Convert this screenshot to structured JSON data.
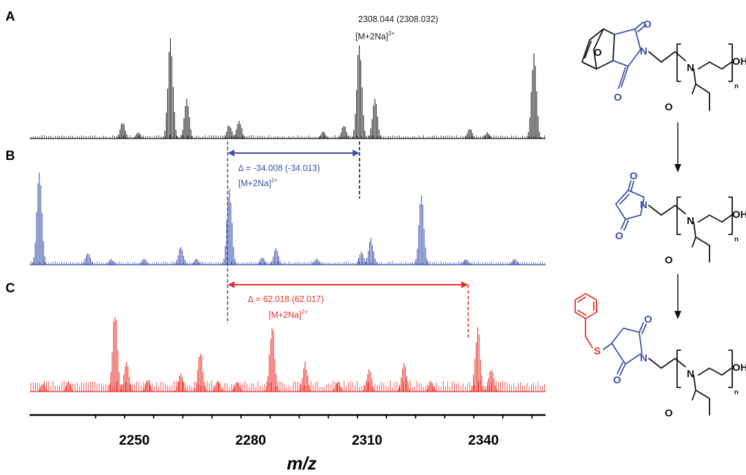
{
  "colors": {
    "A": "#1a1a1a",
    "B": "#3b4fa8",
    "C": "#e8302a",
    "chem_blue": "#3b4fa8",
    "chem_red": "#e8302a"
  },
  "panels": [
    {
      "letter": "A",
      "color": "#1a1a1a"
    },
    {
      "letter": "B",
      "color": "#3b4fa8"
    },
    {
      "letter": "C",
      "color": "#e8302a"
    }
  ],
  "annotations": {
    "A": {
      "value": "2308.044 (2308.032)",
      "ion": "[M+2Na]",
      "charge": "2+"
    },
    "B": {
      "value": "∆ = -34.008 (-34.013)",
      "ion": "[M+2Na]",
      "charge": "2+"
    },
    "C": {
      "value": "∆ = 62.018 (62.017)",
      "ion": "[M+2Na]",
      "charge": "2+"
    }
  },
  "chemistry": {
    "atoms": {
      "O": "O",
      "N": "N",
      "S": "S",
      "OH": "OH",
      "n": "n"
    }
  },
  "chart_data": {
    "type": "bar",
    "xlabel": "m/z",
    "xlim": [
      2223,
      2356
    ],
    "x_ticks": [
      2250,
      2280,
      2310,
      2340
    ],
    "series": [
      {
        "panel": "A",
        "peaks": [
          {
            "center": 2247.0,
            "height": 0.16
          },
          {
            "center": 2251.0,
            "height": 0.06
          },
          {
            "center": 2259.3,
            "height": 1.0
          },
          {
            "center": 2263.5,
            "height": 0.38
          },
          {
            "center": 2274.5,
            "height": 0.14
          },
          {
            "center": 2277.0,
            "height": 0.18
          },
          {
            "center": 2298.7,
            "height": 0.07
          },
          {
            "center": 2304.0,
            "height": 0.13
          },
          {
            "center": 2308.0,
            "height": 0.96
          },
          {
            "center": 2312.0,
            "height": 0.4
          },
          {
            "center": 2336.5,
            "height": 0.1
          },
          {
            "center": 2341.0,
            "height": 0.06
          },
          {
            "center": 2353.0,
            "height": 0.83
          }
        ]
      },
      {
        "panel": "B",
        "peaks": [
          {
            "center": 2225.5,
            "height": 1.0
          },
          {
            "center": 2238.0,
            "height": 0.13
          },
          {
            "center": 2244.0,
            "height": 0.06
          },
          {
            "center": 2252.5,
            "height": 0.07
          },
          {
            "center": 2262.0,
            "height": 0.19
          },
          {
            "center": 2266.0,
            "height": 0.06
          },
          {
            "center": 2274.5,
            "height": 0.8
          },
          {
            "center": 2283.0,
            "height": 0.08
          },
          {
            "center": 2286.5,
            "height": 0.17
          },
          {
            "center": 2297.0,
            "height": 0.06
          },
          {
            "center": 2308.5,
            "height": 0.14
          },
          {
            "center": 2311.0,
            "height": 0.27
          },
          {
            "center": 2324.0,
            "height": 0.73
          },
          {
            "center": 2335.5,
            "height": 0.06
          },
          {
            "center": 2348.0,
            "height": 0.06
          }
        ]
      },
      {
        "panel": "C",
        "peaks": [
          {
            "center": 2226.5,
            "height": 0.1
          },
          {
            "center": 2233.0,
            "height": 0.12
          },
          {
            "center": 2245.0,
            "height": 0.92
          },
          {
            "center": 2248.0,
            "height": 0.35
          },
          {
            "center": 2253.5,
            "height": 0.15
          },
          {
            "center": 2262.0,
            "height": 0.22
          },
          {
            "center": 2267.0,
            "height": 0.46
          },
          {
            "center": 2271.5,
            "height": 0.12
          },
          {
            "center": 2276.5,
            "height": 0.12
          },
          {
            "center": 2285.5,
            "height": 0.8
          },
          {
            "center": 2294.0,
            "height": 0.33
          },
          {
            "center": 2302.5,
            "height": 0.12
          },
          {
            "center": 2310.5,
            "height": 0.27
          },
          {
            "center": 2319.5,
            "height": 0.34
          },
          {
            "center": 2326.5,
            "height": 0.12
          },
          {
            "center": 2338.5,
            "height": 0.77
          },
          {
            "center": 2342.0,
            "height": 0.28
          }
        ]
      }
    ],
    "markers": [
      {
        "panel": "A",
        "mz": 2308.044,
        "calc": 2308.032
      },
      {
        "panel": "B",
        "delta": -34.008,
        "calc": -34.013,
        "from": 2308.044,
        "to": 2274.036
      },
      {
        "panel": "C",
        "delta": 62.018,
        "calc": 62.017,
        "from": 2274.036,
        "to": 2336.054
      }
    ]
  }
}
